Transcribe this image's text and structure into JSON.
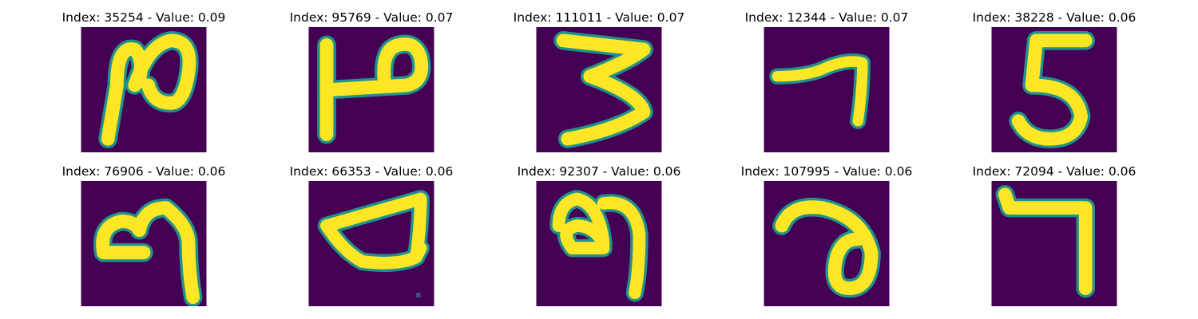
{
  "colors": {
    "background": "#440154",
    "foreground": "#fde725",
    "edge": "#21918c",
    "edge_mid": "#5ec962"
  },
  "panels": [
    {
      "title": "Index: 35254 - Value: 0.09",
      "digit": "2"
    },
    {
      "title": "Index: 95769 - Value: 0.07",
      "digit": "2"
    },
    {
      "title": "Index: 111011 - Value: 0.07",
      "digit": "3"
    },
    {
      "title": "Index: 12344 - Value: 0.07",
      "digit": "7"
    },
    {
      "title": "Index: 38228 - Value: 0.06",
      "digit": "5"
    },
    {
      "title": "Index: 76906 - Value: 0.06",
      "digit": "9"
    },
    {
      "title": "Index: 66353 - Value: 0.06",
      "digit": "4"
    },
    {
      "title": "Index: 92307 - Value: 0.06",
      "digit": "9"
    },
    {
      "title": "Index: 107995 - Value: 0.06",
      "digit": "2"
    },
    {
      "title": "Index: 72094 - Value: 0.06",
      "digit": "7"
    }
  ]
}
